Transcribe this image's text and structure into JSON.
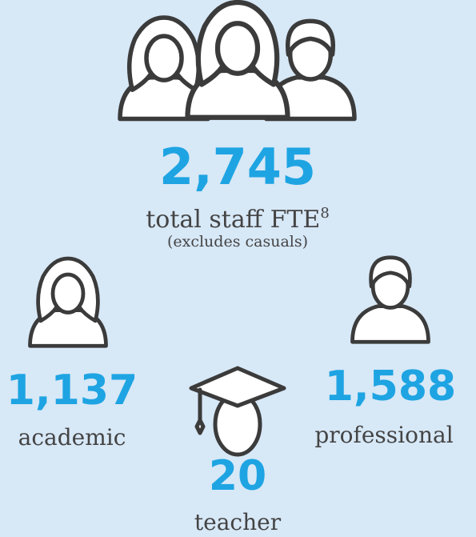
{
  "total": {
    "value": "2,745",
    "label": "total staff FTE",
    "footnote": "8",
    "note": "(excludes casuals)"
  },
  "academic": {
    "value": "1,137",
    "label": "academic"
  },
  "professional": {
    "value": "1,588",
    "label": "professional"
  },
  "teacher": {
    "value": "20",
    "label": "teacher"
  }
}
